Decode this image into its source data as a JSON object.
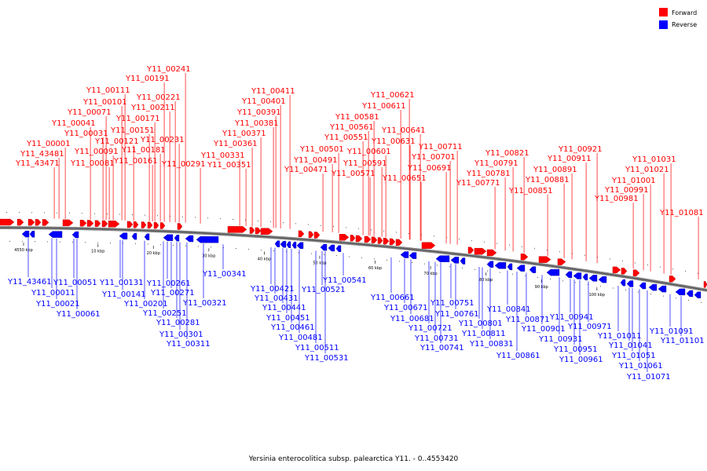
{
  "colors": {
    "forward": "#ff0000",
    "reverse": "#0000ff",
    "backbone": "#888888",
    "leader_fwd": "#ff0000",
    "leader_rev": "#0000ff"
  },
  "legend": {
    "forward_label": "Forward",
    "reverse_label": "Reverse"
  },
  "caption": "Yersinia enterocolitica subsp. palearctica Y11. - 0..4553420",
  "track": {
    "start_bp": 4550000,
    "end_bp": 110000
  },
  "ticks": [
    {
      "label": "4550 kbp",
      "bp": 4550000
    },
    {
      "label": "10 kbp",
      "bp": 10000
    },
    {
      "label": "20 kbp",
      "bp": 20000
    },
    {
      "label": "30 kbp",
      "bp": 30000
    },
    {
      "label": "40 kbp",
      "bp": 40000
    },
    {
      "label": "50 kbp",
      "bp": 50000
    },
    {
      "label": "60 kbp",
      "bp": 60000
    },
    {
      "label": "70 kbp",
      "bp": 70000
    },
    {
      "label": "80 kbp",
      "bp": 80000
    },
    {
      "label": "90 kbp",
      "bp": 90000
    },
    {
      "label": "100 kbp",
      "bp": 100000
    }
  ],
  "forward_genes": [
    {
      "id": "Y11_43471"
    },
    {
      "id": "Y11_43481"
    },
    {
      "id": "Y11_00001"
    },
    {
      "id": "Y11_00031"
    },
    {
      "id": "Y11_00041"
    },
    {
      "id": "Y11_00071"
    },
    {
      "id": "Y11_00081"
    },
    {
      "id": "Y11_00091"
    },
    {
      "id": "Y11_00101"
    },
    {
      "id": "Y11_00111"
    },
    {
      "id": "Y11_00121"
    },
    {
      "id": "Y11_00151"
    },
    {
      "id": "Y11_00161"
    },
    {
      "id": "Y11_00171"
    },
    {
      "id": "Y11_00181"
    },
    {
      "id": "Y11_00191"
    },
    {
      "id": "Y11_00211"
    },
    {
      "id": "Y11_00221"
    },
    {
      "id": "Y11_00231"
    },
    {
      "id": "Y11_00241"
    },
    {
      "id": "Y11_00291"
    },
    {
      "id": "Y11_00331"
    },
    {
      "id": "Y11_00351"
    },
    {
      "id": "Y11_00361"
    },
    {
      "id": "Y11_00371"
    },
    {
      "id": "Y11_00381"
    },
    {
      "id": "Y11_00391"
    },
    {
      "id": "Y11_00401"
    },
    {
      "id": "Y11_00411"
    },
    {
      "id": "Y11_00471"
    },
    {
      "id": "Y11_00491"
    },
    {
      "id": "Y11_00501"
    },
    {
      "id": "Y11_00551"
    },
    {
      "id": "Y11_00561"
    },
    {
      "id": "Y11_00571"
    },
    {
      "id": "Y11_00581"
    },
    {
      "id": "Y11_00591"
    },
    {
      "id": "Y11_00601"
    },
    {
      "id": "Y11_00611"
    },
    {
      "id": "Y11_00621"
    },
    {
      "id": "Y11_00631"
    },
    {
      "id": "Y11_00641"
    },
    {
      "id": "Y11_00651"
    },
    {
      "id": "Y11_00691"
    },
    {
      "id": "Y11_00701"
    },
    {
      "id": "Y11_00711"
    },
    {
      "id": "Y11_00771"
    },
    {
      "id": "Y11_00781"
    },
    {
      "id": "Y11_00791"
    },
    {
      "id": "Y11_00821"
    },
    {
      "id": "Y11_00851"
    },
    {
      "id": "Y11_00881"
    },
    {
      "id": "Y11_00891"
    },
    {
      "id": "Y11_00911"
    },
    {
      "id": "Y11_00921"
    },
    {
      "id": "Y11_00981"
    },
    {
      "id": "Y11_00991"
    },
    {
      "id": "Y11_01001"
    },
    {
      "id": "Y11_01021"
    },
    {
      "id": "Y11_01031"
    },
    {
      "id": "Y11_01081"
    }
  ],
  "reverse_genes": [
    {
      "id": "Y11_43461"
    },
    {
      "id": "Y11_00011"
    },
    {
      "id": "Y11_00021"
    },
    {
      "id": "Y11_00051"
    },
    {
      "id": "Y11_00061"
    },
    {
      "id": "Y11_00131"
    },
    {
      "id": "Y11_00141"
    },
    {
      "id": "Y11_00201"
    },
    {
      "id": "Y11_00251"
    },
    {
      "id": "Y11_00261"
    },
    {
      "id": "Y11_00271"
    },
    {
      "id": "Y11_00281"
    },
    {
      "id": "Y11_00301"
    },
    {
      "id": "Y11_00311"
    },
    {
      "id": "Y11_00321"
    },
    {
      "id": "Y11_00341"
    },
    {
      "id": "Y11_00421"
    },
    {
      "id": "Y11_00431"
    },
    {
      "id": "Y11_00441"
    },
    {
      "id": "Y11_00451"
    },
    {
      "id": "Y11_00461"
    },
    {
      "id": "Y11_00481"
    },
    {
      "id": "Y11_00511"
    },
    {
      "id": "Y11_00521"
    },
    {
      "id": "Y11_00531"
    },
    {
      "id": "Y11_00541"
    },
    {
      "id": "Y11_00661"
    },
    {
      "id": "Y11_00671"
    },
    {
      "id": "Y11_00681"
    },
    {
      "id": "Y11_00721"
    },
    {
      "id": "Y11_00731"
    },
    {
      "id": "Y11_00741"
    },
    {
      "id": "Y11_00751"
    },
    {
      "id": "Y11_00761"
    },
    {
      "id": "Y11_00801"
    },
    {
      "id": "Y11_00811"
    },
    {
      "id": "Y11_00831"
    },
    {
      "id": "Y11_00841"
    },
    {
      "id": "Y11_00861"
    },
    {
      "id": "Y11_00871"
    },
    {
      "id": "Y11_00901"
    },
    {
      "id": "Y11_00931"
    },
    {
      "id": "Y11_00941"
    },
    {
      "id": "Y11_00951"
    },
    {
      "id": "Y11_00961"
    },
    {
      "id": "Y11_00971"
    },
    {
      "id": "Y11_01011"
    },
    {
      "id": "Y11_01041"
    },
    {
      "id": "Y11_01051"
    },
    {
      "id": "Y11_01061"
    },
    {
      "id": "Y11_01071"
    },
    {
      "id": "Y11_01091"
    },
    {
      "id": "Y11_01101"
    }
  ]
}
